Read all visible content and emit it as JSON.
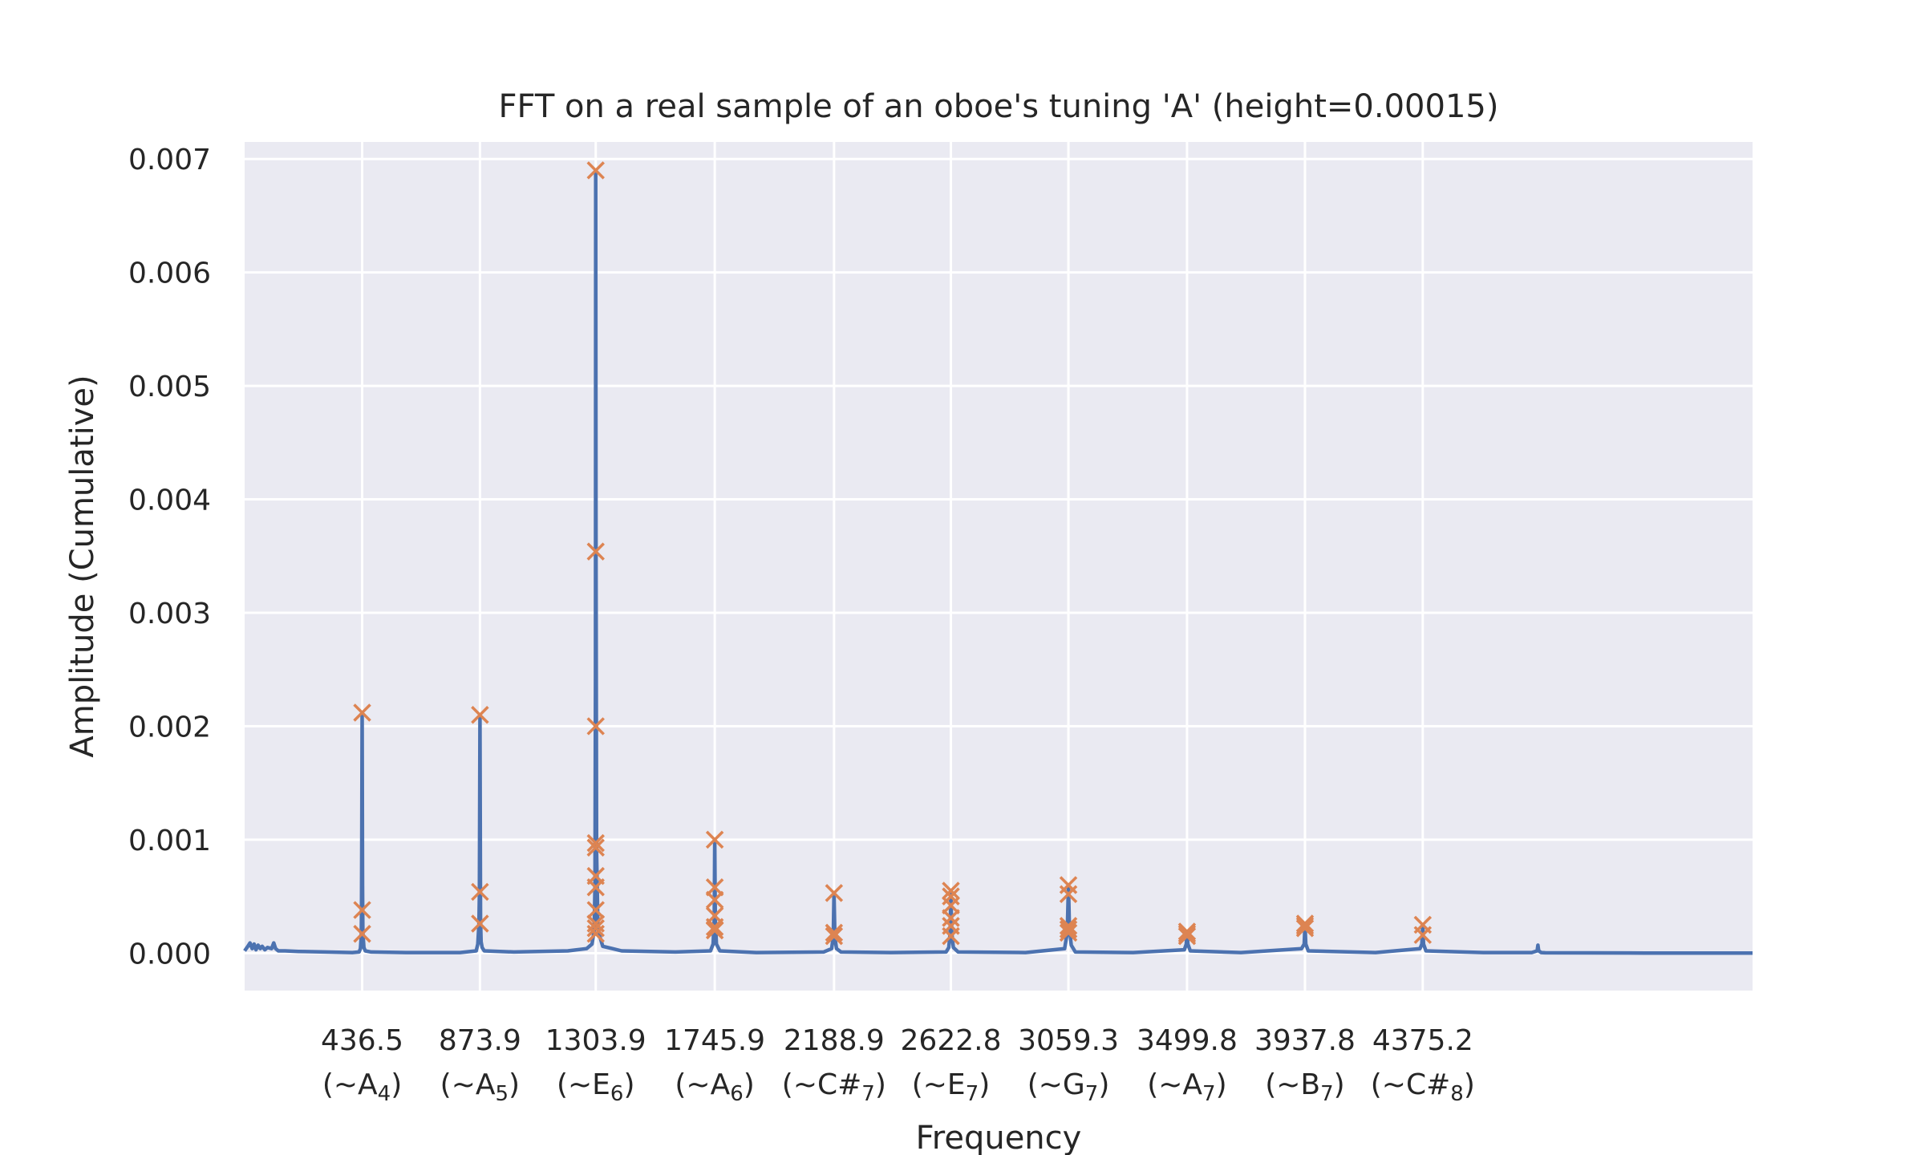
{
  "chart_data": {
    "type": "line",
    "title": "FFT on a real sample of an oboe's tuning 'A' (height=0.00015)",
    "xlabel": "Frequency",
    "ylabel": "Amplitude (Cumulative)",
    "xlim": [
      0,
      5600
    ],
    "ylim": [
      -0.00033,
      0.00715
    ],
    "grid": true,
    "legend": "none",
    "colors": {
      "background": "#eaeaf2",
      "grid": "#ffffff",
      "signal": "#4c72b0",
      "peaks": "#dd8452"
    },
    "y_ticks": [
      {
        "value": 0.0,
        "label": "0.000"
      },
      {
        "value": 0.001,
        "label": "0.001"
      },
      {
        "value": 0.002,
        "label": "0.002"
      },
      {
        "value": 0.003,
        "label": "0.003"
      },
      {
        "value": 0.004,
        "label": "0.004"
      },
      {
        "value": 0.005,
        "label": "0.005"
      },
      {
        "value": 0.006,
        "label": "0.006"
      },
      {
        "value": 0.007,
        "label": "0.007"
      }
    ],
    "x_ticks": [
      {
        "value": 436.5,
        "freq": "436.5",
        "note": "A",
        "octave": "4"
      },
      {
        "value": 873.9,
        "freq": "873.9",
        "note": "A",
        "octave": "5"
      },
      {
        "value": 1303.9,
        "freq": "1303.9",
        "note": "E",
        "octave": "6"
      },
      {
        "value": 1745.9,
        "freq": "1745.9",
        "note": "A",
        "octave": "6"
      },
      {
        "value": 2188.9,
        "freq": "2188.9",
        "note": "C#",
        "octave": "7"
      },
      {
        "value": 2622.8,
        "freq": "2622.8",
        "note": "E",
        "octave": "7"
      },
      {
        "value": 3059.3,
        "freq": "3059.3",
        "note": "G",
        "octave": "7"
      },
      {
        "value": 3499.8,
        "freq": "3499.8",
        "note": "A",
        "octave": "7"
      },
      {
        "value": 3937.8,
        "freq": "3937.8",
        "note": "B",
        "octave": "7"
      },
      {
        "value": 4375.2,
        "freq": "4375.2",
        "note": "C#",
        "octave": "8"
      }
    ],
    "series": [
      {
        "x": [
          0,
          12,
          20,
          28,
          35,
          42,
          50,
          58,
          65,
          75,
          85,
          100,
          108,
          115,
          125,
          150,
          200,
          300,
          400,
          425,
          430,
          433,
          434,
          435,
          436.5,
          438,
          439,
          443,
          448,
          470,
          600,
          800,
          860,
          866,
          870,
          872,
          873.9,
          876,
          878,
          882,
          890,
          1000,
          1200,
          1270,
          1290,
          1298,
          1301,
          1303,
          1303.9,
          1305,
          1307,
          1312,
          1330,
          1400,
          1600,
          1730,
          1740,
          1744,
          1745.9,
          1748,
          1752,
          1765,
          1900,
          2150,
          2180,
          2186,
          2188.9,
          2192,
          2198,
          2215,
          2400,
          2605,
          2615,
          2620,
          2622.8,
          2626,
          2632,
          2650,
          2900,
          3045,
          3055,
          3059.3,
          3063,
          3070,
          3085,
          3300,
          3490,
          3497,
          3499.8,
          3503,
          3512,
          3700,
          3925,
          3935,
          3937.8,
          3941,
          3950,
          4200,
          4365,
          4372,
          4375.2,
          4378,
          4387,
          4600,
          4780,
          4800,
          4803,
          4806,
          4815,
          4830,
          5000,
          5200,
          5400,
          5600
        ],
        "y": [
          2e-05,
          6e-05,
          9e-05,
          4e-05,
          8e-05,
          3e-05,
          7e-05,
          4e-05,
          6e-05,
          3e-05,
          5e-05,
          4e-05,
          9e-05,
          4e-05,
          2e-05,
          2e-05,
          1.5e-05,
          1e-05,
          5e-06,
          1e-05,
          4e-05,
          0.00015,
          0.00035,
          0.0009,
          0.00212,
          0.0006,
          0.00018,
          5e-05,
          2e-05,
          1e-05,
          5e-06,
          5e-06,
          2e-05,
          8e-05,
          0.00025,
          0.00052,
          0.00209,
          0.0003,
          0.0001,
          5e-05,
          2e-05,
          1e-05,
          2e-05,
          4e-05,
          8e-05,
          0.0002,
          0.0006,
          0.0024,
          0.0069,
          0.0035,
          0.0009,
          0.0002,
          6e-05,
          2e-05,
          1e-05,
          2e-05,
          8e-05,
          0.0003,
          0.001,
          0.0003,
          8e-05,
          2e-05,
          5e-06,
          1e-05,
          4e-05,
          0.00015,
          0.00053,
          0.00014,
          4e-05,
          1e-05,
          5e-06,
          1e-05,
          5e-05,
          0.00018,
          0.00054,
          0.00018,
          5e-05,
          1e-05,
          5e-06,
          4e-05,
          0.00018,
          0.0006,
          0.00022,
          7e-05,
          1e-05,
          5e-06,
          3e-05,
          8e-05,
          0.00019,
          8e-05,
          2e-05,
          5e-06,
          4e-05,
          8e-05,
          0.00025,
          8e-05,
          2e-05,
          5e-06,
          4e-05,
          8e-05,
          0.00025,
          8e-05,
          2e-05,
          5e-06,
          5e-06,
          2e-05,
          7e-05,
          2e-05,
          5e-06,
          3e-06,
          2e-06,
          1e-06,
          1e-06,
          1e-06
        ]
      }
    ],
    "peaks": {
      "marker": "x",
      "x": [
        436.5,
        436.5,
        436.5,
        873.9,
        873.9,
        873.9,
        1303.9,
        1303.9,
        1303.9,
        1303.9,
        1303.9,
        1303.9,
        1303.9,
        1303.9,
        1303.9,
        1303.9,
        1303.9,
        1745.9,
        1745.9,
        1745.9,
        1745.9,
        1745.9,
        1745.9,
        2188.9,
        2188.9,
        2188.9,
        2622.8,
        2622.8,
        2622.8,
        2622.8,
        2622.8,
        2622.8,
        3059.3,
        3059.3,
        3059.3,
        3059.3,
        3059.3,
        3499.8,
        3499.8,
        3499.8,
        3937.8,
        3937.8,
        3937.8,
        4375.2,
        4375.2
      ],
      "y": [
        0.00212,
        0.00038,
        0.00017,
        0.0021,
        0.00054,
        0.00026,
        0.0069,
        0.00354,
        0.002,
        0.00097,
        0.00093,
        0.00068,
        0.00058,
        0.00038,
        0.00026,
        0.00022,
        0.00017,
        0.001,
        0.00058,
        0.00047,
        0.00033,
        0.00023,
        0.0002,
        0.00053,
        0.00018,
        0.00015,
        0.00055,
        0.0005,
        0.00042,
        0.00031,
        0.00024,
        0.00015,
        0.0006,
        0.00052,
        0.00024,
        0.00021,
        0.00018,
        0.00019,
        0.00017,
        0.00015,
        0.00026,
        0.00024,
        0.00022,
        0.00025,
        0.00016
      ]
    }
  }
}
